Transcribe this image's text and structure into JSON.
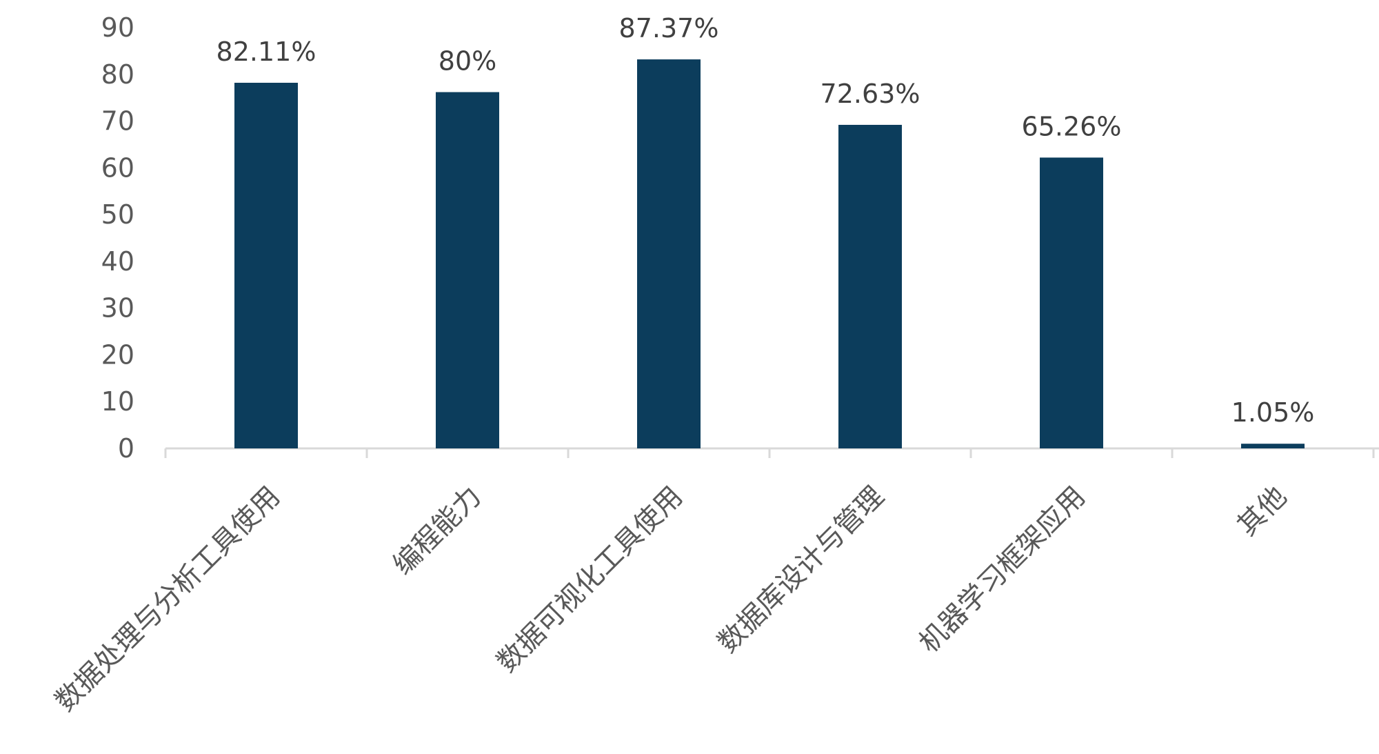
{
  "chart_data": {
    "type": "bar",
    "categories": [
      "数据处理与分析工具使用",
      "编程能力",
      "数据可视化工具使用",
      "数据库设计与管理",
      "机器学习框架应用",
      "其他"
    ],
    "values": [
      78.2,
      76.2,
      83.2,
      69.2,
      62.2,
      1.0
    ],
    "data_labels": [
      "82.11%",
      "80%",
      "87.37%",
      "72.63%",
      "65.26%",
      "1.05%"
    ],
    "yticks": [
      "0",
      "10",
      "20",
      "30",
      "40",
      "50",
      "60",
      "70",
      "80",
      "90"
    ],
    "ylim": [
      0,
      90
    ],
    "title": "",
    "xlabel": "",
    "ylabel": "",
    "grid": false,
    "legend": "none",
    "colors": {
      "bar": "#0c3d5c",
      "axis": "#d9d9d9",
      "tick_text": "#595959",
      "label_text": "#404040"
    }
  }
}
